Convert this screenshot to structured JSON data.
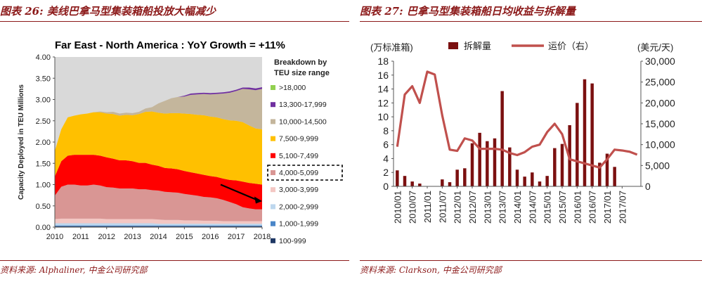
{
  "left": {
    "figure_title": "图表 26: 美线巴拿马型集装箱船投放大幅减少",
    "source": "资料来源: Alphaliner, 中金公司研究部"
  },
  "right": {
    "figure_title": "图表 27: 巴拿马型集装箱船日均收益与拆解量",
    "source": "资料来源: Clarkson, 中金公司研究部"
  },
  "chart_data": [
    {
      "type": "area",
      "title": "Far East - North America : YoY Growth = +11%",
      "ylabel": "Capacity Deployed in TEU Millions",
      "xlabel": "",
      "ylim": [
        0,
        4.0
      ],
      "yticks": [
        "0.00",
        "0.50",
        "1.00",
        "1.50",
        "2.00",
        "2.50",
        "3.00",
        "3.50",
        "4.00"
      ],
      "xticks": [
        "2010",
        "2011",
        "2012",
        "2013",
        "2014",
        "2015",
        "2016",
        "2017",
        "2018"
      ],
      "legend_title": "Breakdown by TEU size range",
      "legend_position": "right",
      "highlighted_legend_item": "4,000-5,099",
      "annotation": "downward arrow on 4,000-5,099 band, 2016.4 to 2018",
      "x": [
        2010.0,
        2010.25,
        2010.5,
        2010.75,
        2011.0,
        2011.25,
        2011.5,
        2011.75,
        2012.0,
        2012.25,
        2012.5,
        2012.75,
        2013.0,
        2013.25,
        2013.5,
        2013.75,
        2014.0,
        2014.25,
        2014.5,
        2014.75,
        2015.0,
        2015.25,
        2015.5,
        2015.75,
        2016.0,
        2016.25,
        2016.5,
        2016.75,
        2017.0,
        2017.25,
        2017.5,
        2017.75,
        2018.0
      ],
      "series": [
        {
          "name": "100-999",
          "color": "#1f3864",
          "values": [
            0.02,
            0.02,
            0.02,
            0.02,
            0.02,
            0.02,
            0.02,
            0.02,
            0.02,
            0.02,
            0.02,
            0.02,
            0.02,
            0.02,
            0.02,
            0.02,
            0.02,
            0.02,
            0.02,
            0.02,
            0.02,
            0.02,
            0.02,
            0.02,
            0.02,
            0.02,
            0.02,
            0.02,
            0.02,
            0.02,
            0.02,
            0.02,
            0.02
          ]
        },
        {
          "name": "1,000-1,999",
          "color": "#4a86c8",
          "values": [
            0.02,
            0.02,
            0.02,
            0.02,
            0.02,
            0.02,
            0.02,
            0.02,
            0.02,
            0.02,
            0.02,
            0.02,
            0.02,
            0.02,
            0.02,
            0.02,
            0.02,
            0.02,
            0.02,
            0.02,
            0.02,
            0.02,
            0.02,
            0.02,
            0.02,
            0.02,
            0.02,
            0.02,
            0.02,
            0.02,
            0.02,
            0.02,
            0.02
          ]
        },
        {
          "name": "2,000-2,999",
          "color": "#bdd7ee",
          "values": [
            0.05,
            0.05,
            0.05,
            0.05,
            0.05,
            0.05,
            0.05,
            0.05,
            0.05,
            0.05,
            0.05,
            0.05,
            0.05,
            0.05,
            0.05,
            0.05,
            0.04,
            0.04,
            0.04,
            0.04,
            0.04,
            0.04,
            0.04,
            0.04,
            0.04,
            0.04,
            0.04,
            0.04,
            0.04,
            0.04,
            0.04,
            0.04,
            0.04
          ]
        },
        {
          "name": "3,000-3,999",
          "color": "#f4c7c3",
          "values": [
            0.1,
            0.11,
            0.11,
            0.11,
            0.11,
            0.11,
            0.11,
            0.11,
            0.1,
            0.1,
            0.1,
            0.1,
            0.1,
            0.1,
            0.1,
            0.1,
            0.1,
            0.09,
            0.09,
            0.09,
            0.08,
            0.08,
            0.08,
            0.07,
            0.07,
            0.07,
            0.06,
            0.06,
            0.06,
            0.06,
            0.06,
            0.06,
            0.06
          ]
        },
        {
          "name": "4,000-5,099",
          "color": "#d99694",
          "values": [
            0.55,
            0.75,
            0.8,
            0.8,
            0.78,
            0.78,
            0.8,
            0.78,
            0.75,
            0.74,
            0.72,
            0.72,
            0.72,
            0.7,
            0.7,
            0.68,
            0.68,
            0.66,
            0.65,
            0.64,
            0.62,
            0.6,
            0.58,
            0.56,
            0.55,
            0.53,
            0.5,
            0.45,
            0.4,
            0.33,
            0.3,
            0.28,
            0.28
          ]
        },
        {
          "name": "5,100-7,499",
          "color": "#ff0000",
          "values": [
            0.45,
            0.6,
            0.68,
            0.7,
            0.72,
            0.72,
            0.7,
            0.7,
            0.7,
            0.68,
            0.66,
            0.66,
            0.64,
            0.62,
            0.62,
            0.6,
            0.58,
            0.56,
            0.56,
            0.55,
            0.54,
            0.53,
            0.52,
            0.52,
            0.5,
            0.5,
            0.5,
            0.52,
            0.56,
            0.6,
            0.6,
            0.6,
            0.58
          ]
        },
        {
          "name": "7,500-9,999",
          "color": "#ffc000",
          "values": [
            0.6,
            0.75,
            0.9,
            0.92,
            0.95,
            0.97,
            1.0,
            1.02,
            1.03,
            1.05,
            1.05,
            1.07,
            1.08,
            1.15,
            1.2,
            1.25,
            1.25,
            1.28,
            1.3,
            1.32,
            1.35,
            1.37,
            1.38,
            1.4,
            1.4,
            1.4,
            1.4,
            1.4,
            1.4,
            1.4,
            1.35,
            1.3,
            1.3
          ]
        },
        {
          "name": "10,000-14,500",
          "color": "#c4b69c",
          "values": [
            0.0,
            0.0,
            0.0,
            0.0,
            0.0,
            0.0,
            0.0,
            0.02,
            0.03,
            0.05,
            0.05,
            0.05,
            0.05,
            0.05,
            0.08,
            0.1,
            0.22,
            0.3,
            0.35,
            0.38,
            0.4,
            0.45,
            0.48,
            0.5,
            0.52,
            0.55,
            0.6,
            0.65,
            0.7,
            0.78,
            0.85,
            0.9,
            0.95
          ]
        },
        {
          "name": "13,300-17,999",
          "color": "#7030a0",
          "values": [
            0.0,
            0.0,
            0.0,
            0.0,
            0.0,
            0.0,
            0.0,
            0.0,
            0.0,
            0.0,
            0.0,
            0.0,
            0.0,
            0.0,
            0.0,
            0.0,
            0.0,
            0.0,
            0.0,
            0.0,
            0.02,
            0.03,
            0.03,
            0.03,
            0.03,
            0.03,
            0.03,
            0.03,
            0.03,
            0.03,
            0.04,
            0.04,
            0.04
          ]
        },
        {
          "name": ">18,000",
          "color": "#92d050",
          "values": [
            0,
            0,
            0,
            0,
            0,
            0,
            0,
            0,
            0,
            0,
            0,
            0,
            0,
            0,
            0,
            0,
            0,
            0,
            0,
            0,
            0,
            0,
            0,
            0,
            0,
            0,
            0,
            0,
            0,
            0,
            0,
            0,
            0
          ]
        }
      ]
    },
    {
      "type": "bar",
      "title": "",
      "ylabel": "(万标准箱)",
      "y2label": "(美元/天)",
      "ylim": [
        0,
        18
      ],
      "y2lim": [
        0,
        30000
      ],
      "yticks": [
        "0",
        "2",
        "4",
        "6",
        "8",
        "10",
        "12",
        "14",
        "16",
        "18"
      ],
      "y2ticks": [
        "0",
        "5,000",
        "10,000",
        "15,000",
        "20,000",
        "25,000",
        "30,000"
      ],
      "xticks": [
        "2010/01",
        "2010/07",
        "2011/01",
        "2011/07",
        "2012/01",
        "2012/07",
        "2013/01",
        "2013/07",
        "2014/01",
        "2014/07",
        "2015/01",
        "2015/07",
        "2016/01",
        "2016/07",
        "2017/01",
        "2017/07"
      ],
      "legend_position": "top",
      "period_count": 33,
      "series": [
        {
          "name": "拆解量",
          "kind": "bar",
          "axis": "left",
          "color": "#7b1010",
          "values": [
            2.3,
            1.5,
            0.7,
            0.4,
            0,
            0,
            1.0,
            0.6,
            2.4,
            2.6,
            6.2,
            7.7,
            6.5,
            6.9,
            13.7,
            5.6,
            2.4,
            1.4,
            2.0,
            0.7,
            1.5,
            5.5,
            6.1,
            8.8,
            12.0,
            15.4,
            14.8,
            3.4,
            4.7,
            2.8,
            0,
            0,
            0
          ]
        },
        {
          "name": "运价（右）",
          "kind": "line",
          "axis": "right",
          "color": "#c0504d",
          "values": [
            9500,
            22000,
            24000,
            20000,
            27500,
            26800,
            17000,
            8800,
            8500,
            11500,
            11000,
            9000,
            9000,
            9000,
            8800,
            8000,
            7500,
            8200,
            9500,
            10000,
            13000,
            15000,
            12500,
            6500,
            6000,
            5500,
            5000,
            4500,
            6500,
            8800,
            8600,
            8300,
            7600
          ]
        }
      ]
    }
  ]
}
